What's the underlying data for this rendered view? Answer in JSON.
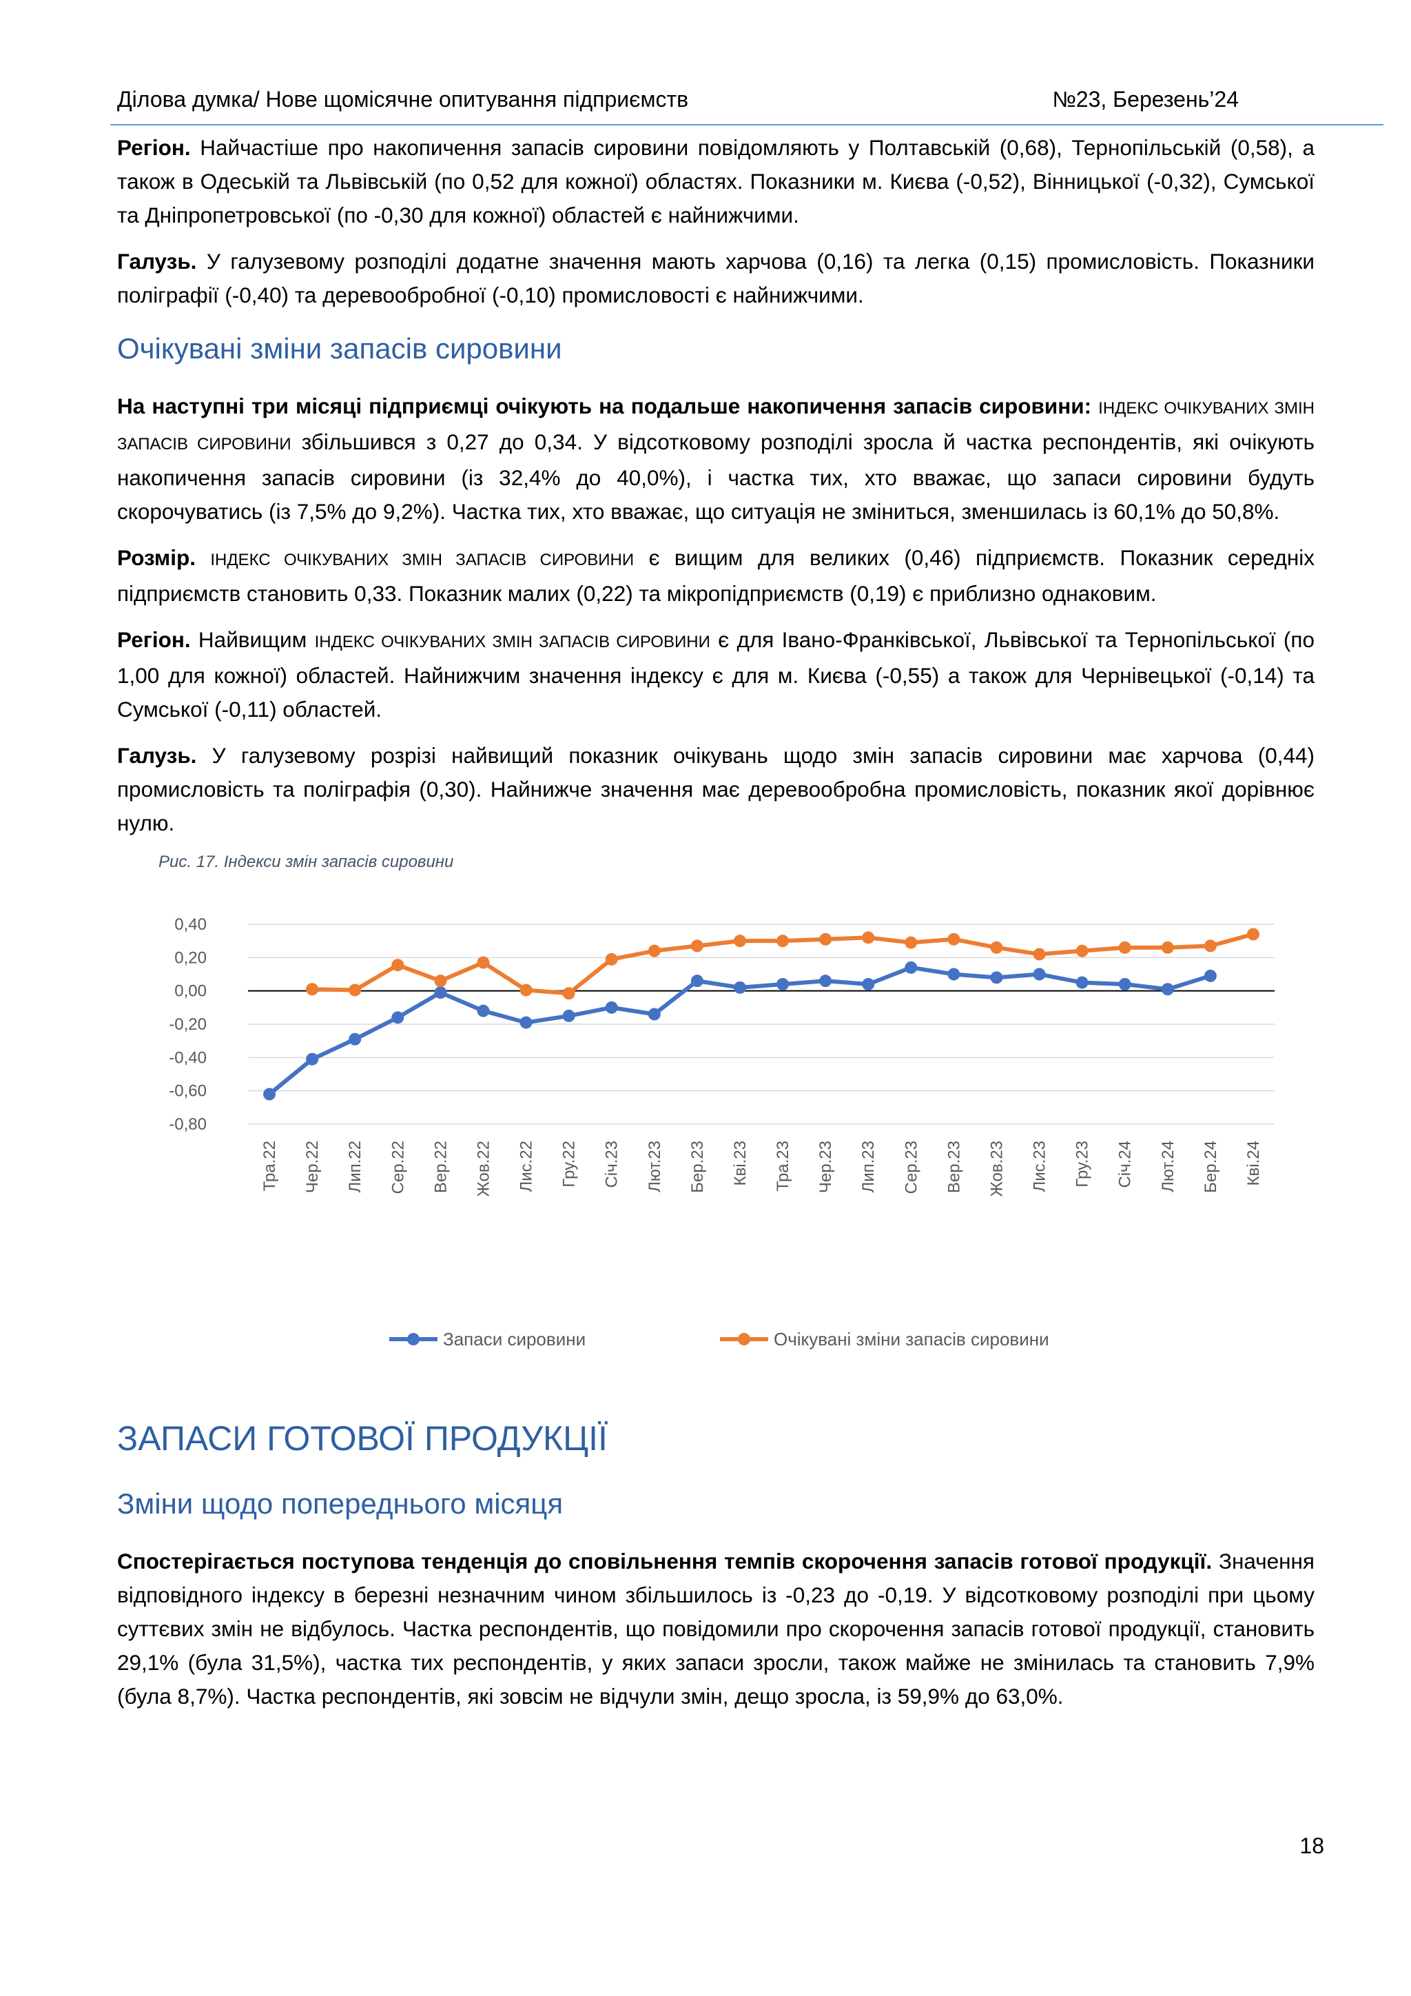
{
  "header": {
    "left": "Ділова думка/ Нове щомісячне опитування підприємств",
    "right": "№23, Березень’24"
  },
  "p1": {
    "lead": "Регіон.",
    "text": " Найчастіше про накопичення запасів сировини повідомляють у Полтавській (0,68), Тернопільській (0,58), а також в Одеській та Львівській (по 0,52  для кожної) областях. Показники м. Києва (-0,52), Вінницької (-0,32), Сумської та Дніпропетровської (по -0,30  для кожної) областей є найнижчими."
  },
  "p2": {
    "lead": "Галузь.",
    "text": " У галузевому розподілі додатне значення мають харчова (0,16) та легка (0,15) промисловість. Показники поліграфії (-0,40) та деревообробної (-0,10) промисловості є найнижчими."
  },
  "h_expected": "Очікувані зміни запасів сировини",
  "p3": {
    "lead": "На наступні три місяці підприємці очікують на подальше накопичення запасів сировини:",
    "sc": "індекс очікуваних змін запасів сировини",
    "text": " збільшився з 0,27 до 0,34. У відсотковому розподілі зросла й частка респондентів, які очікують накопичення запасів сировини (із 32,4% до 40,0%), і частка тих, хто вважає, що запаси сировини будуть скорочуватись (із 7,5% до 9,2%). Частка тих, хто вважає, що ситуація не зміниться, зменшилась із 60,1% до 50,8%."
  },
  "p4": {
    "lead": "Розмір.",
    "sc": "індекс очікуваних змін запасів сировини",
    "text": " є вищим для великих (0,46) підприємств. Показник середніх підприємств становить 0,33. Показник малих (0,22) та мікропідприємств (0,19) є приблизно однаковим."
  },
  "p5": {
    "lead": "Регіон.",
    "pre": " Найвищим ",
    "sc": "індекс очікуваних змін запасів сировини",
    "text": " є для Івано-Франківської, Львівської та Тернопільської (по 1,00 для кожної) областей. Найнижчим значення індексу є для м. Києва (-0,55) а також для Чернівецької (-0,14) та Сумської (-0,11) областей."
  },
  "p6": {
    "lead": "Галузь.",
    "text": " У галузевому розрізі найвищий показник очікувань щодо змін запасів сировини має харчова (0,44) промисловість та поліграфія (0,30). Найнижче значення має деревообробна промисловість, показник якої дорівнює нулю."
  },
  "caption": "Рис.  17. Індекси змін запасів сировини",
  "chart_data": {
    "type": "line",
    "categories": [
      "Тра.22",
      "Чер.22",
      "Лип.22",
      "Сер.22",
      "Вер.22",
      "Жов.22",
      "Лис.22",
      "Гру.22",
      "Січ.23",
      "Лют.23",
      "Бер.23",
      "Кві.23",
      "Тра.23",
      "Чер.23",
      "Лип.23",
      "Сер.23",
      "Вер.23",
      "Жов.23",
      "Лис.23",
      "Гру.23",
      "Січ.24",
      "Лют.24",
      "Бер.24",
      "Кві.24"
    ],
    "ylim": [
      -0.8,
      0.4
    ],
    "yticks": [
      0.4,
      0.2,
      0.0,
      -0.2,
      -0.4,
      -0.6,
      -0.8
    ],
    "ytick_labels": [
      "0,40",
      "0,20",
      "0,00",
      "-0,20",
      "-0,40",
      "-0,60",
      "-0,80"
    ],
    "grid": true,
    "legend_position": "bottom",
    "series": [
      {
        "name": "Запаси сировини",
        "color": "#4472c4",
        "values": [
          -0.62,
          -0.41,
          -0.29,
          -0.16,
          -0.01,
          -0.12,
          -0.19,
          -0.15,
          -0.1,
          -0.14,
          0.06,
          0.02,
          0.04,
          0.06,
          0.04,
          0.14,
          0.1,
          0.08,
          0.1,
          0.05,
          0.04,
          0.01,
          0.09,
          null
        ]
      },
      {
        "name": "Очікувані зміни запасів сировини",
        "color": "#ed7d31",
        "values": [
          null,
          0.01,
          0.005,
          0.155,
          0.06,
          0.17,
          0.005,
          -0.015,
          0.19,
          0.24,
          0.27,
          0.3,
          0.3,
          0.31,
          0.32,
          0.29,
          0.31,
          0.26,
          0.22,
          0.24,
          0.26,
          0.26,
          0.27,
          0.34
        ]
      }
    ]
  },
  "h_finished": "ЗАПАСИ ГОТОВОЇ ПРОДУКЦІЇ",
  "h_prev": "Зміни щодо попереднього місяця",
  "p7": {
    "lead": "Спостерігається поступова тенденція до сповільнення темпів скорочення запасів готової продукції.",
    "text": " Значення відповідного індексу в березні незначним чином збільшилось із -0,23 до -0,19. У відсотковому розподілі при цьому суттєвих змін не відбулось. Частка респондентів, що повідомили про скорочення запасів готової продукції, становить 29,1% (була 31,5%), частка тих респондентів, у яких запаси зросли, також майже не змінилась та становить 7,9% (була 8,7%). Частка респондентів, які зовсім не відчули змін, дещо зросла, із 59,9% до 63,0%."
  },
  "page_number": "18"
}
